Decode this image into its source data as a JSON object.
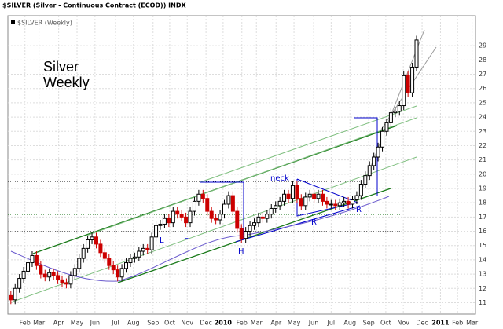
{
  "chart_data": {
    "type": "candlestick",
    "title": "$SILVER (Silver - Continuous Contract (ECOD)) INDX",
    "legend": "$SILVER (Weekly)",
    "annotations": [
      "Silver",
      "Weekly",
      "neck",
      "L",
      "L",
      "H",
      "R",
      "R"
    ],
    "up_color": "#000000",
    "down_color": "#cc0000",
    "grid": true,
    "xlim": [
      -0.7,
      108.8
    ],
    "ylim": [
      10.2,
      31.1
    ],
    "xticks": [
      {
        "value": 3.3,
        "label": "Feb"
      },
      {
        "value": 6.6,
        "label": "Mar"
      },
      {
        "value": 11.2,
        "label": "Apr"
      },
      {
        "value": 15.5,
        "label": "May"
      },
      {
        "value": 19.7,
        "label": "Jun"
      },
      {
        "value": 24.5,
        "label": "Jul"
      },
      {
        "value": 28.7,
        "label": "Aug"
      },
      {
        "value": 33.3,
        "label": "Sep"
      },
      {
        "value": 37.2,
        "label": "Oct"
      },
      {
        "value": 41.3,
        "label": "Nov"
      },
      {
        "value": 45.7,
        "label": "Dec"
      },
      {
        "value": 49.7,
        "label": "2010"
      },
      {
        "value": 54.1,
        "label": "Feb"
      },
      {
        "value": 57.5,
        "label": "Mar"
      },
      {
        "value": 62.1,
        "label": "Apr"
      },
      {
        "value": 66.3,
        "label": "May"
      },
      {
        "value": 70.9,
        "label": "Jun"
      },
      {
        "value": 75,
        "label": "Jul"
      },
      {
        "value": 79.4,
        "label": "Aug"
      },
      {
        "value": 83.8,
        "label": "Sep"
      },
      {
        "value": 87.8,
        "label": "Oct"
      },
      {
        "value": 91.9,
        "label": "Nov"
      },
      {
        "value": 96.3,
        "label": "Dec"
      },
      {
        "value": 100.6,
        "label": "2011"
      },
      {
        "value": 104.6,
        "label": "Feb"
      },
      {
        "value": 108,
        "label": "Mar"
      }
    ],
    "yticks": [
      11,
      12,
      13,
      14,
      15,
      16,
      17,
      18,
      19,
      20,
      21,
      22,
      23,
      24,
      25,
      26,
      27,
      28,
      29
    ],
    "x": [
      0,
      1,
      2,
      3,
      4,
      5,
      6,
      7,
      8,
      9,
      10,
      11,
      12,
      13,
      14,
      15,
      16,
      17,
      18,
      19,
      20,
      21,
      22,
      23,
      24,
      25,
      26,
      27,
      28,
      29,
      30,
      31,
      32,
      33,
      34,
      35,
      36,
      37,
      38,
      39,
      40,
      41,
      42,
      43,
      44,
      45,
      46,
      47,
      48,
      49,
      50,
      51,
      52,
      53,
      54,
      55,
      56,
      57,
      58,
      59,
      60,
      61,
      62,
      63,
      64,
      65,
      66,
      67,
      68,
      69,
      70,
      71,
      72,
      73,
      74,
      75,
      76,
      77,
      78,
      79,
      80,
      81,
      82,
      83,
      84,
      85,
      86,
      87,
      88,
      89,
      90,
      91,
      92,
      93,
      94,
      95
    ],
    "open": [
      11.5,
      11.2,
      12.0,
      12.7,
      13.2,
      13.8,
      14.3,
      13.6,
      13.0,
      12.8,
      13.1,
      12.9,
      12.6,
      12.4,
      12.3,
      12.9,
      13.4,
      14.1,
      14.8,
      15.4,
      15.6,
      15.1,
      14.5,
      14.1,
      13.6,
      13.3,
      12.8,
      13.4,
      13.8,
      14.1,
      14.2,
      14.6,
      14.8,
      14.7,
      15.6,
      16.4,
      16.5,
      16.9,
      16.6,
      17.4,
      17.2,
      17.0,
      16.6,
      17.4,
      18.1,
      18.6,
      18.3,
      17.4,
      16.9,
      16.8,
      17.2,
      17.9,
      18.5,
      17.4,
      16.2,
      15.5,
      16.0,
      16.4,
      16.6,
      17.0,
      16.9,
      17.2,
      17.6,
      17.8,
      18.1,
      18.6,
      18.3,
      19.2,
      18.3,
      17.8,
      18.4,
      18.6,
      18.3,
      18.6,
      18.1,
      17.9,
      17.9,
      17.8,
      18.0,
      18.1,
      17.9,
      18.2,
      18.5,
      19.3,
      19.9,
      20.6,
      21.2,
      21.9,
      23.0,
      23.6,
      24.3,
      24.4,
      24.8,
      26.9,
      25.7,
      27.5
    ],
    "high": [
      11.8,
      12.3,
      13.0,
      13.5,
      14.1,
      14.6,
      14.6,
      13.9,
      13.3,
      13.4,
      13.4,
      13.2,
      12.9,
      12.7,
      13.2,
      13.7,
      14.4,
      15.1,
      15.7,
      15.9,
      15.9,
      15.4,
      14.8,
      14.4,
      13.9,
      13.6,
      13.7,
      14.1,
      14.4,
      14.5,
      14.9,
      15.1,
      15.1,
      15.9,
      16.7,
      16.8,
      17.2,
      17.2,
      17.7,
      17.7,
      17.5,
      17.3,
      17.7,
      18.4,
      18.9,
      18.9,
      18.6,
      17.7,
      17.2,
      17.5,
      18.2,
      18.8,
      18.8,
      17.7,
      16.5,
      16.3,
      16.7,
      16.9,
      17.3,
      17.3,
      17.5,
      17.9,
      18.1,
      18.4,
      18.9,
      18.9,
      19.5,
      19.5,
      18.6,
      18.7,
      18.9,
      18.9,
      18.9,
      18.9,
      18.4,
      18.2,
      18.2,
      18.3,
      18.4,
      18.4,
      18.5,
      18.8,
      19.6,
      20.2,
      20.9,
      21.5,
      22.2,
      23.3,
      23.9,
      24.6,
      24.7,
      25.1,
      27.2,
      27.2,
      27.8,
      29.7
    ],
    "low": [
      10.9,
      10.9,
      11.7,
      12.4,
      12.9,
      13.5,
      13.3,
      12.7,
      12.5,
      12.5,
      12.6,
      12.3,
      12.1,
      12.0,
      12.0,
      12.6,
      13.1,
      13.8,
      14.5,
      15.1,
      14.8,
      14.2,
      13.8,
      13.3,
      13.0,
      12.5,
      12.5,
      13.1,
      13.5,
      13.8,
      13.9,
      14.3,
      14.4,
      14.4,
      15.3,
      16.1,
      16.2,
      16.3,
      16.3,
      16.9,
      16.7,
      16.3,
      16.3,
      17.1,
      17.8,
      18.0,
      17.1,
      16.6,
      16.5,
      16.5,
      16.9,
      17.6,
      17.1,
      15.9,
      15.2,
      15.2,
      15.7,
      16.1,
      16.3,
      16.6,
      16.6,
      16.9,
      17.3,
      17.5,
      17.8,
      18.0,
      18.0,
      18.0,
      17.5,
      17.5,
      18.1,
      18.0,
      18.0,
      17.8,
      17.6,
      17.6,
      17.5,
      17.5,
      17.7,
      17.6,
      17.6,
      17.9,
      18.2,
      19.0,
      19.6,
      20.3,
      20.9,
      21.6,
      22.7,
      23.3,
      24.0,
      24.1,
      24.5,
      25.4,
      25.4,
      27.2
    ],
    "close": [
      11.2,
      12.0,
      12.7,
      13.2,
      13.8,
      14.3,
      13.6,
      13.0,
      12.8,
      13.1,
      12.9,
      12.6,
      12.4,
      12.3,
      12.9,
      13.4,
      14.1,
      14.8,
      15.4,
      15.6,
      15.1,
      14.5,
      14.1,
      13.6,
      13.3,
      12.8,
      13.4,
      13.8,
      14.1,
      14.2,
      14.6,
      14.8,
      14.7,
      15.6,
      16.4,
      16.5,
      16.9,
      16.6,
      17.4,
      17.2,
      17.0,
      16.6,
      17.4,
      18.1,
      18.6,
      18.3,
      17.4,
      16.9,
      16.8,
      17.2,
      17.9,
      18.5,
      17.4,
      16.2,
      15.5,
      16.0,
      16.4,
      16.6,
      17.0,
      16.9,
      17.2,
      17.6,
      17.8,
      18.1,
      18.6,
      18.3,
      19.2,
      18.3,
      17.8,
      18.4,
      18.6,
      18.3,
      18.6,
      18.1,
      17.9,
      17.9,
      17.8,
      18.0,
      18.1,
      17.9,
      18.2,
      18.5,
      19.3,
      19.9,
      20.6,
      21.2,
      21.9,
      23.0,
      23.6,
      24.3,
      24.4,
      24.8,
      26.9,
      25.7,
      27.5,
      29.4
    ]
  }
}
